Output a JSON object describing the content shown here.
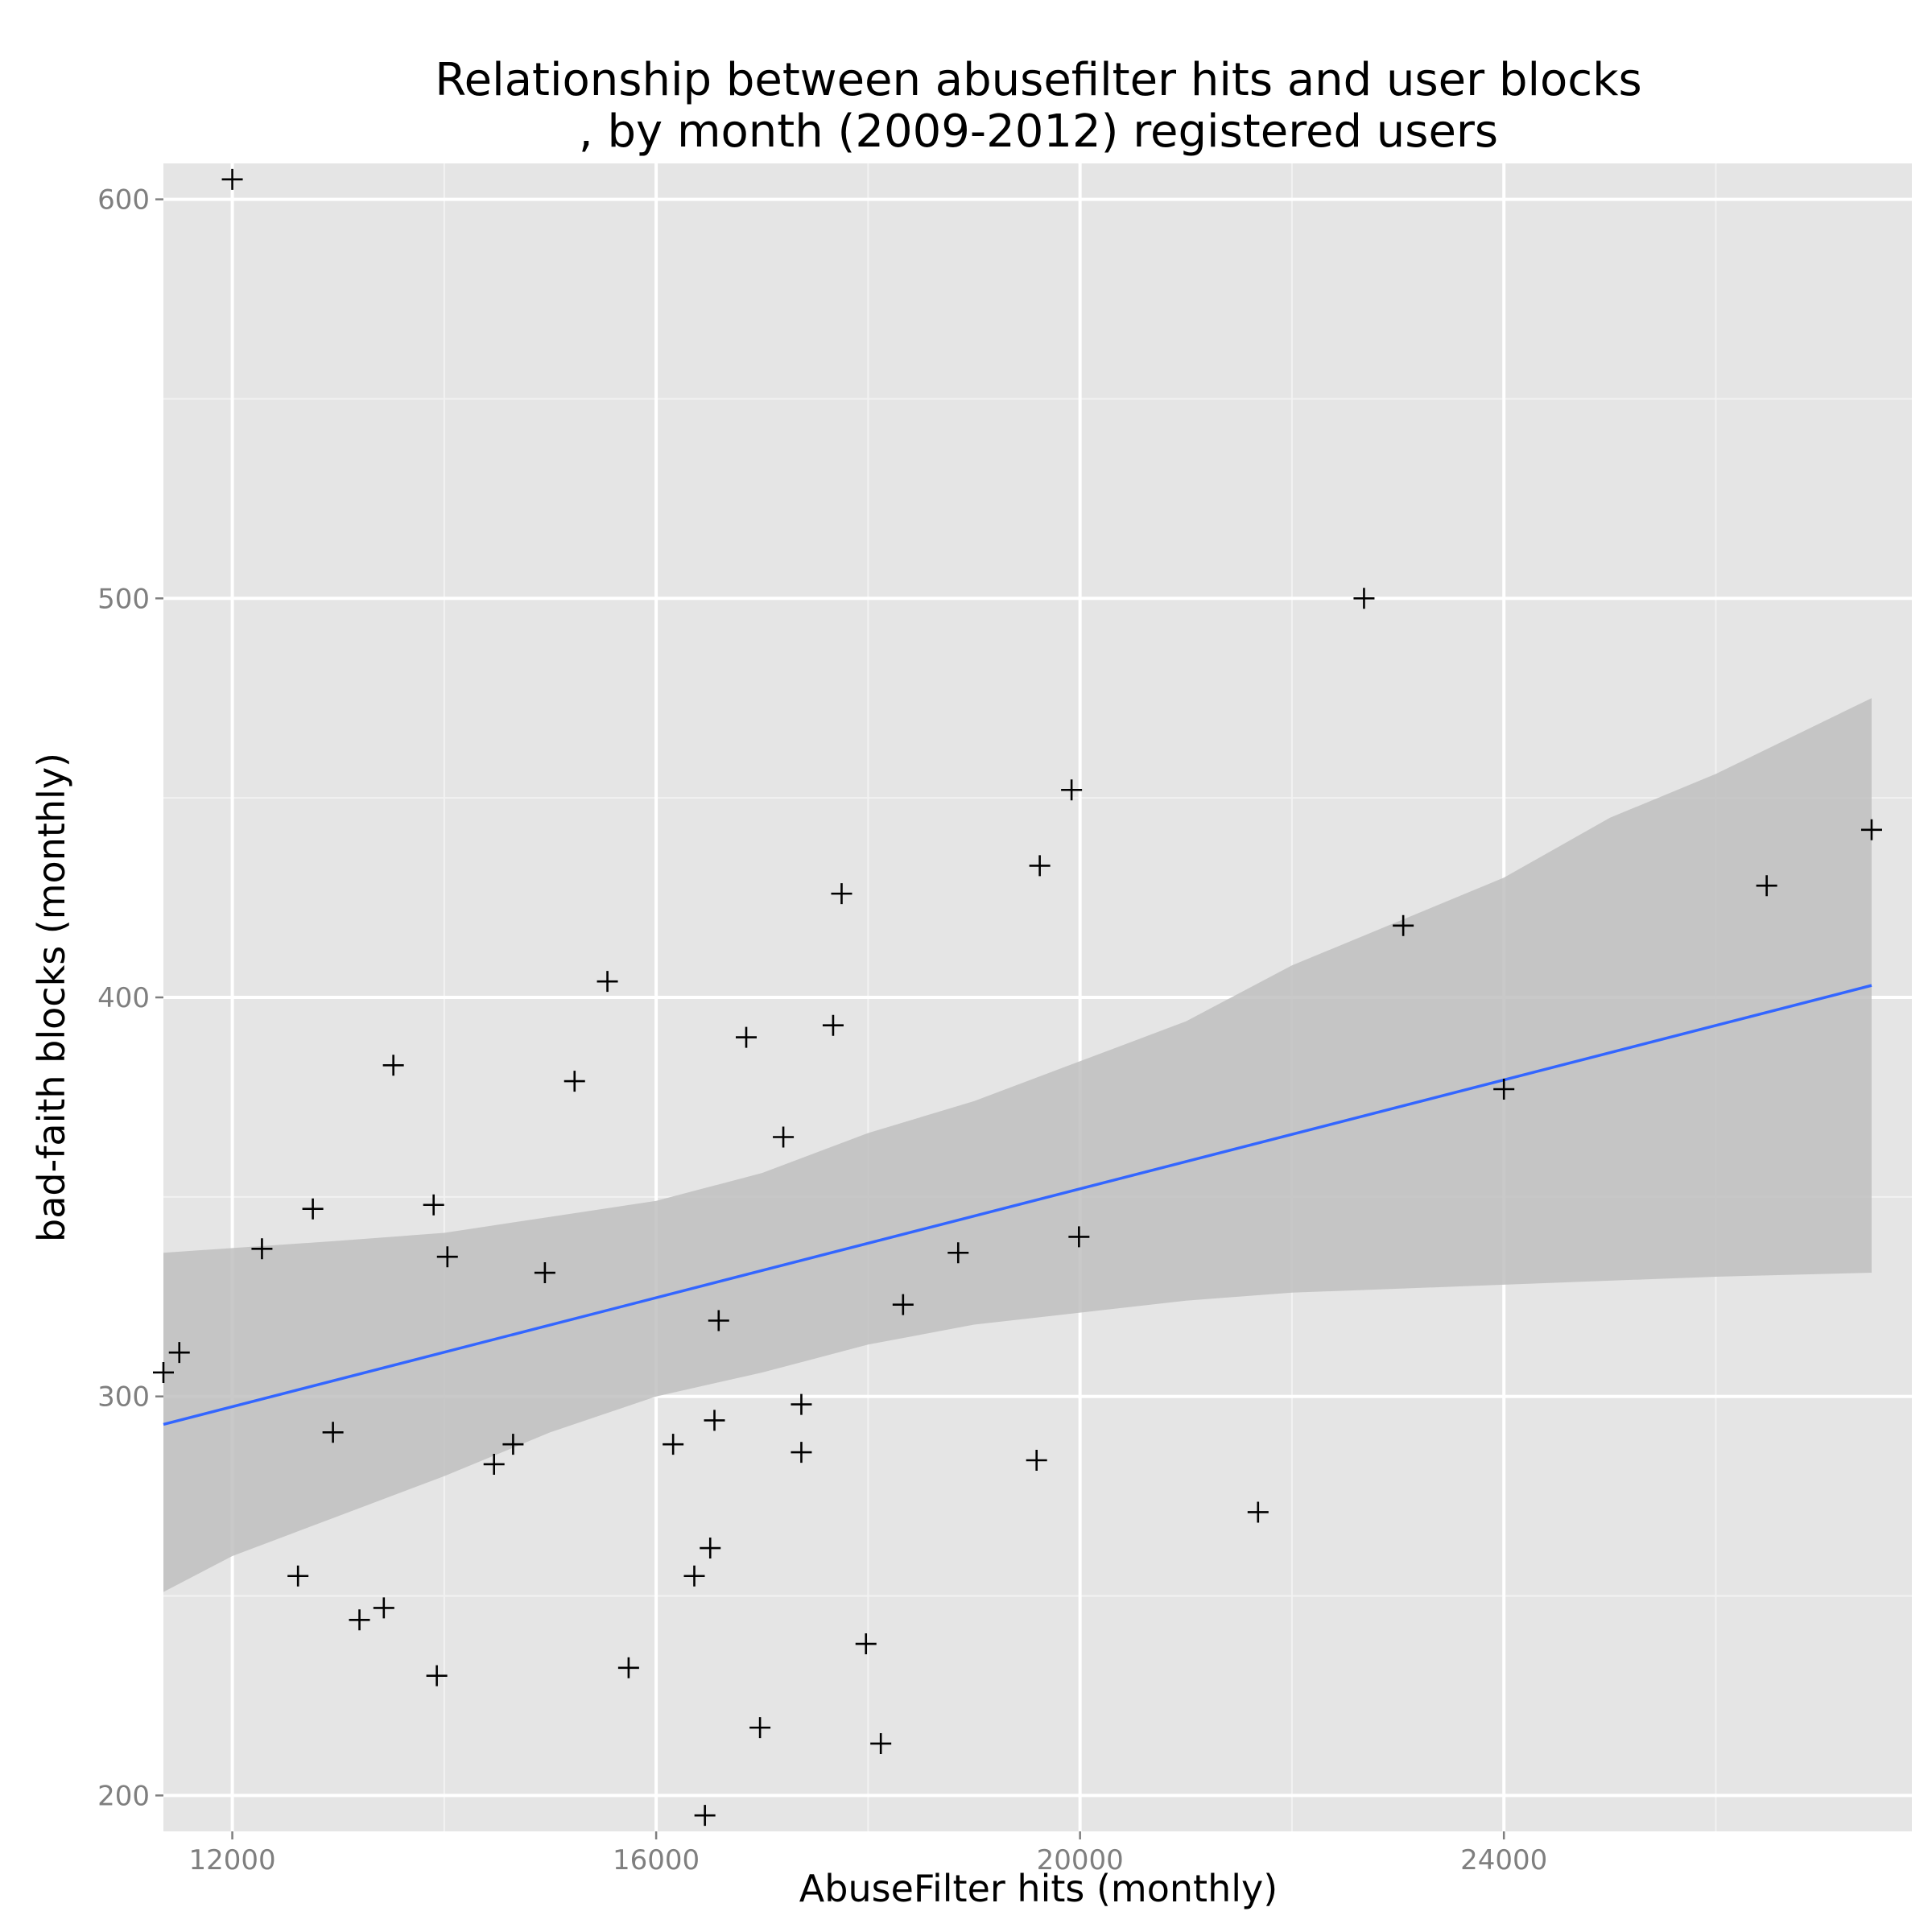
{
  "chart_data": {
    "type": "scatter",
    "title_line1": "Relationship between abusefilter hits and user blocks",
    "title_line2": ", by month (2009-2012) registered users",
    "xlabel": "AbuseFilter hits (monthly)",
    "ylabel": "bad-faith blocks (monthly)",
    "xlim": [
      11350,
      27850
    ],
    "ylim": [
      191,
      609
    ],
    "x_ticks": [
      12000,
      16000,
      20000,
      24000
    ],
    "x_tick_labels": [
      "12000",
      "16000",
      "20000",
      "24000"
    ],
    "y_ticks": [
      200,
      300,
      400,
      500,
      600
    ],
    "y_tick_labels": [
      "200",
      "300",
      "400",
      "500",
      "600"
    ],
    "x_minor": [
      14000,
      18000,
      22000,
      26000
    ],
    "y_minor": [
      250,
      350,
      450,
      550
    ],
    "grid": true,
    "legend": "none",
    "colors": {
      "panel_background": "#e5e5e5",
      "grid_major": "#ffffff",
      "grid_minor": "#f2f2f2",
      "point": "#000000",
      "fit_line": "#3366ff",
      "confidence_band": "#bfbfbf"
    },
    "point_shape": "plus",
    "points": [
      {
        "x": 11350,
        "y": 306
      },
      {
        "x": 11500,
        "y": 311
      },
      {
        "x": 12000,
        "y": 605
      },
      {
        "x": 12280,
        "y": 337
      },
      {
        "x": 12620,
        "y": 255
      },
      {
        "x": 12760,
        "y": 347
      },
      {
        "x": 12950,
        "y": 291
      },
      {
        "x": 13200,
        "y": 244
      },
      {
        "x": 13430,
        "y": 247
      },
      {
        "x": 13520,
        "y": 383
      },
      {
        "x": 13900,
        "y": 348
      },
      {
        "x": 13930,
        "y": 230
      },
      {
        "x": 14030,
        "y": 335
      },
      {
        "x": 14470,
        "y": 283
      },
      {
        "x": 14650,
        "y": 288
      },
      {
        "x": 14950,
        "y": 331
      },
      {
        "x": 15230,
        "y": 379
      },
      {
        "x": 15540,
        "y": 404
      },
      {
        "x": 15740,
        "y": 232
      },
      {
        "x": 16160,
        "y": 288
      },
      {
        "x": 16360,
        "y": 255
      },
      {
        "x": 16460,
        "y": 195
      },
      {
        "x": 16510,
        "y": 262
      },
      {
        "x": 16550,
        "y": 294
      },
      {
        "x": 16590,
        "y": 319
      },
      {
        "x": 16850,
        "y": 390
      },
      {
        "x": 16980,
        "y": 217
      },
      {
        "x": 17200,
        "y": 365
      },
      {
        "x": 17370,
        "y": 298
      },
      {
        "x": 17370,
        "y": 286
      },
      {
        "x": 17670,
        "y": 393
      },
      {
        "x": 17750,
        "y": 426
      },
      {
        "x": 17980,
        "y": 238
      },
      {
        "x": 18120,
        "y": 213
      },
      {
        "x": 18330,
        "y": 323
      },
      {
        "x": 18850,
        "y": 336
      },
      {
        "x": 19590,
        "y": 284
      },
      {
        "x": 19620,
        "y": 433
      },
      {
        "x": 19920,
        "y": 452
      },
      {
        "x": 19990,
        "y": 340
      },
      {
        "x": 21680,
        "y": 271
      },
      {
        "x": 22680,
        "y": 500
      },
      {
        "x": 23050,
        "y": 418
      },
      {
        "x": 24000,
        "y": 377
      },
      {
        "x": 26480,
        "y": 428
      },
      {
        "x": 27470,
        "y": 442
      }
    ],
    "fit_line": [
      {
        "x": 11350,
        "y": 293
      },
      {
        "x": 27470,
        "y": 403
      }
    ],
    "confidence_band": {
      "upper": [
        {
          "x": 11350,
          "y": 336
        },
        {
          "x": 13000,
          "y": 339
        },
        {
          "x": 14000,
          "y": 341
        },
        {
          "x": 15000,
          "y": 345
        },
        {
          "x": 16000,
          "y": 349
        },
        {
          "x": 17000,
          "y": 356
        },
        {
          "x": 18000,
          "y": 366
        },
        {
          "x": 19000,
          "y": 374
        },
        {
          "x": 20000,
          "y": 384
        },
        {
          "x": 21000,
          "y": 394
        },
        {
          "x": 22000,
          "y": 408
        },
        {
          "x": 23000,
          "y": 419
        },
        {
          "x": 24000,
          "y": 430
        },
        {
          "x": 25000,
          "y": 445
        },
        {
          "x": 26000,
          "y": 456
        },
        {
          "x": 27470,
          "y": 475
        }
      ],
      "lower": [
        {
          "x": 11350,
          "y": 251
        },
        {
          "x": 12000,
          "y": 260
        },
        {
          "x": 13000,
          "y": 270
        },
        {
          "x": 14000,
          "y": 280
        },
        {
          "x": 15000,
          "y": 291
        },
        {
          "x": 16000,
          "y": 300
        },
        {
          "x": 17000,
          "y": 306
        },
        {
          "x": 18000,
          "y": 313
        },
        {
          "x": 19000,
          "y": 318
        },
        {
          "x": 20000,
          "y": 321
        },
        {
          "x": 21000,
          "y": 324
        },
        {
          "x": 22000,
          "y": 326
        },
        {
          "x": 23000,
          "y": 327
        },
        {
          "x": 24000,
          "y": 328
        },
        {
          "x": 25000,
          "y": 329
        },
        {
          "x": 26000,
          "y": 330
        },
        {
          "x": 27470,
          "y": 331
        }
      ]
    }
  }
}
